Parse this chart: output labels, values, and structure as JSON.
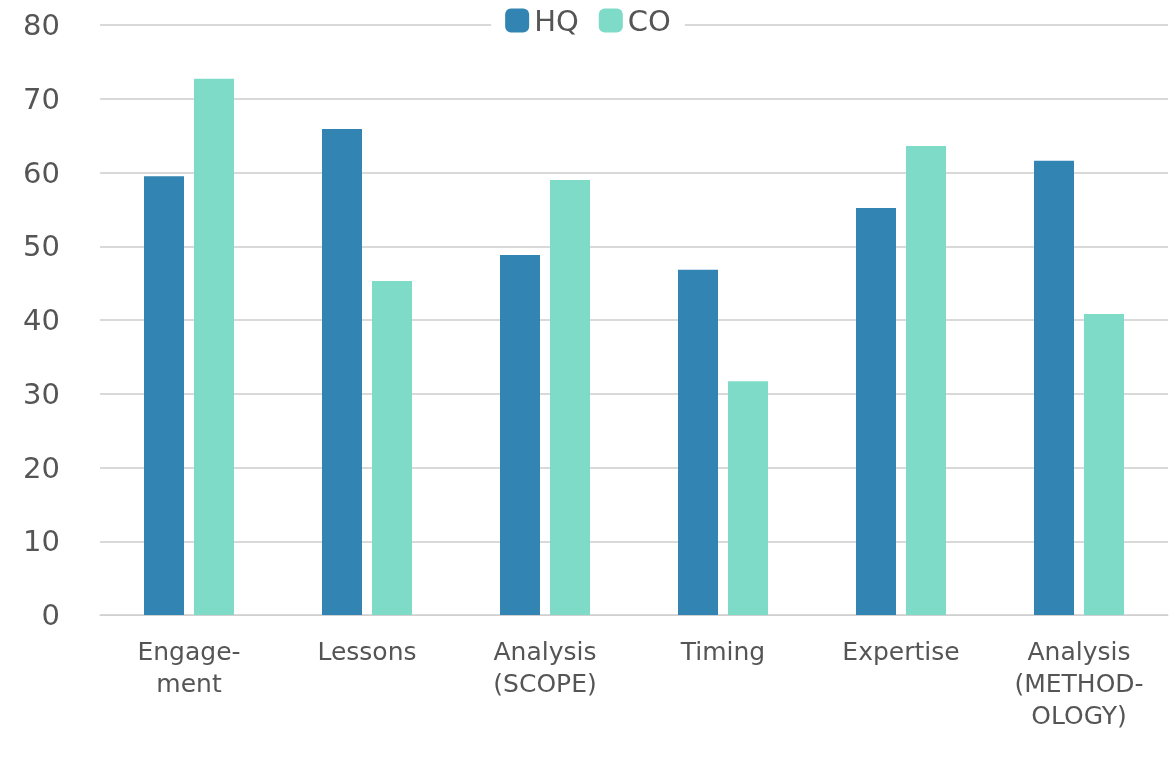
{
  "chart_data": {
    "type": "bar",
    "categories": [
      "Engage-\nment",
      "Lessons",
      "Analysis\n(SCOPE)",
      "Timing",
      "Expertise",
      "Analysis\n(METHOD-\nOLOGY)"
    ],
    "series": [
      {
        "name": "HQ",
        "color": "#3285b2",
        "values": [
          59.5,
          65.9,
          48.8,
          46.8,
          55.2,
          61.6
        ]
      },
      {
        "name": "CO",
        "color": "#7ddbc8",
        "values": [
          72.7,
          45.3,
          59.0,
          31.7,
          63.6,
          40.8
        ]
      }
    ],
    "ylim": [
      0,
      80
    ],
    "yticks": [
      0,
      10,
      20,
      30,
      40,
      50,
      60,
      70,
      80
    ],
    "grid": "y",
    "legend": "top"
  }
}
